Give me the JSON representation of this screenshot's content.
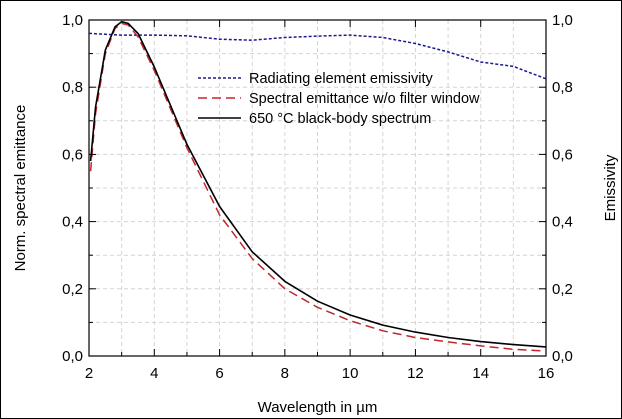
{
  "chart_data": {
    "type": "line",
    "xlabel": "Wavelength in µm",
    "ylabel": "Norm. spectral emittance",
    "y2label": "Emissivity",
    "xlim": [
      2,
      16
    ],
    "ylim": [
      0,
      1.0
    ],
    "y2lim": [
      0,
      1.0
    ],
    "xticks": [
      2,
      4,
      6,
      8,
      10,
      12,
      14,
      16
    ],
    "xtick_labels": [
      "2",
      "4",
      "6",
      "8",
      "10",
      "12",
      "14",
      "16"
    ],
    "yticks": [
      0,
      0.2,
      0.4,
      0.6,
      0.8,
      1.0
    ],
    "ytick_labels": [
      "0,0",
      "0,2",
      "0,4",
      "0,6",
      "0,8",
      "1,0"
    ],
    "y2tick_labels": [
      "0,0",
      "0,2",
      "0,4",
      "0,6",
      "0,8",
      "1,0"
    ],
    "grid": true,
    "legend_position": "top-right",
    "series": [
      {
        "name": "Radiating element emissivity",
        "color": "#1a1a8c",
        "style": "dotted",
        "axis": "right",
        "x": [
          2,
          3,
          4,
          5,
          6,
          7,
          8,
          9,
          10,
          11,
          12,
          13,
          14,
          15,
          16
        ],
        "y": [
          0.96,
          0.955,
          0.955,
          0.953,
          0.943,
          0.94,
          0.948,
          0.952,
          0.955,
          0.948,
          0.93,
          0.905,
          0.875,
          0.862,
          0.825
        ]
      },
      {
        "name": "Spectral emittance w/o filter window",
        "color": "#c0282d",
        "style": "dashed",
        "axis": "left",
        "x": [
          2.05,
          2.2,
          2.5,
          2.8,
          3.0,
          3.2,
          3.5,
          4,
          5,
          6,
          7,
          8,
          9,
          10,
          11,
          12,
          13,
          14,
          15,
          16
        ],
        "y": [
          0.55,
          0.72,
          0.9,
          0.975,
          0.99,
          0.985,
          0.95,
          0.85,
          0.62,
          0.42,
          0.29,
          0.2,
          0.145,
          0.105,
          0.075,
          0.055,
          0.042,
          0.03,
          0.02,
          0.015
        ]
      },
      {
        "name": "650 °C black-body spectrum",
        "color": "#000000",
        "style": "solid",
        "axis": "left",
        "x": [
          2.05,
          2.2,
          2.5,
          2.8,
          3.0,
          3.2,
          3.5,
          4,
          5,
          6,
          7,
          8,
          9,
          10,
          11,
          12,
          13,
          14,
          15,
          16
        ],
        "y": [
          0.58,
          0.74,
          0.91,
          0.98,
          0.995,
          0.99,
          0.96,
          0.86,
          0.63,
          0.445,
          0.31,
          0.222,
          0.163,
          0.122,
          0.092,
          0.071,
          0.055,
          0.043,
          0.034,
          0.027
        ]
      }
    ]
  }
}
